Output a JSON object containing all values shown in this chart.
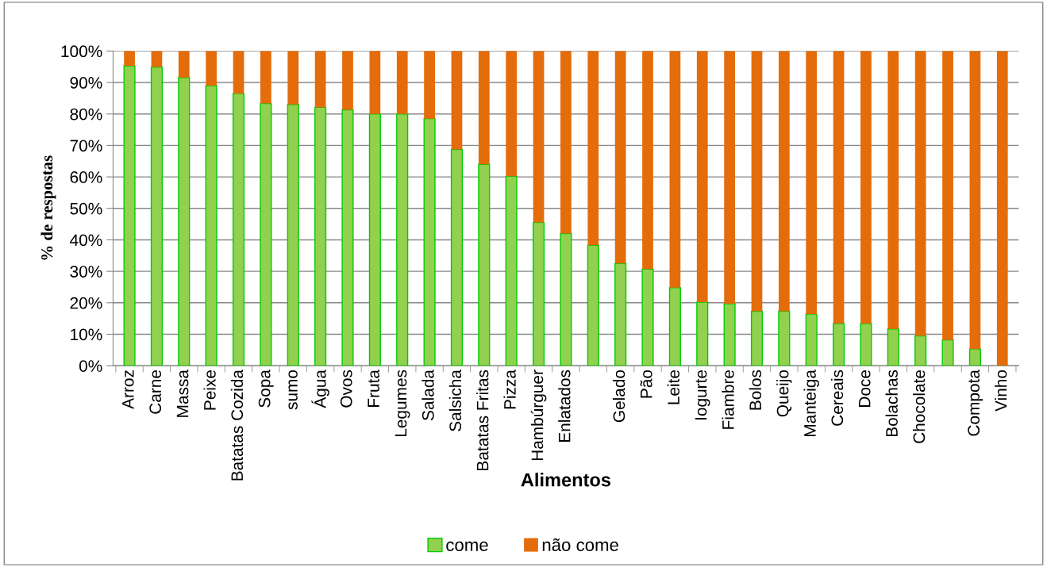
{
  "chart_data": {
    "type": "bar",
    "stacked": true,
    "xlabel": "Alimentos",
    "ylabel": "% de respostas",
    "categories": [
      "Arroz",
      "Carne",
      "Massa",
      "Peixe",
      "Batatas Cozida",
      "Sopa",
      "sumo",
      "Água",
      "Ovos",
      "Fruta",
      "Legumes",
      "Salada",
      "Salsicha",
      "Batatas Fritas",
      "Pizza",
      "Hambúrguer",
      "Enlatados",
      null,
      "Gelado",
      "Pão",
      "Leite",
      "Iogurte",
      "Fiambre",
      "Bolos",
      "Queijo",
      "Manteiga",
      "Cereais",
      "Doce",
      "Bolachas",
      "Chocolate",
      null,
      "Compota",
      "Vinho"
    ],
    "series": [
      {
        "name": "come",
        "color": "#92d050",
        "values": [
          95.3,
          94.9,
          91.6,
          89,
          86.5,
          83.3,
          83,
          82.1,
          81.3,
          80,
          80,
          78.5,
          68.7,
          64,
          60.2,
          45.5,
          42,
          38.3,
          32.5,
          30.7,
          24.8,
          20.2,
          19.7,
          17.3,
          17.3,
          16.4,
          13.4,
          13.4,
          11.7,
          9.5,
          8.2,
          5.3,
          0
        ]
      },
      {
        "name": "não come",
        "color": "#e46c0a",
        "values": [
          4.7,
          5.1,
          8.4,
          11,
          13.5,
          16.7,
          17,
          17.9,
          18.7,
          20,
          20,
          21.5,
          31.3,
          36,
          39.8,
          54.5,
          58,
          61.7,
          67.5,
          69.3,
          75.2,
          79.8,
          80.3,
          82.7,
          82.7,
          83.6,
          86.6,
          86.6,
          88.3,
          90.5,
          91.8,
          94.7,
          100
        ]
      }
    ],
    "ylim": [
      0,
      100
    ],
    "yticks": [
      {
        "value": 0,
        "label": "0%"
      },
      {
        "value": 10,
        "label": "10%"
      },
      {
        "value": 20,
        "label": "20%"
      },
      {
        "value": 30,
        "label": "30%"
      },
      {
        "value": 40,
        "label": "40%"
      },
      {
        "value": 50,
        "label": "50%"
      },
      {
        "value": 60,
        "label": "60%"
      },
      {
        "value": 70,
        "label": "70%"
      },
      {
        "value": 80,
        "label": "80%"
      },
      {
        "value": 90,
        "label": "90%"
      },
      {
        "value": 100,
        "label": "100%"
      }
    ],
    "grid": "y",
    "legend": "bottom"
  }
}
